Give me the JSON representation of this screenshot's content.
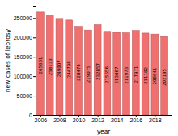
{
  "chart_data": {
    "type": "bar",
    "x": [
      2006,
      2007,
      2008,
      2009,
      2010,
      2011,
      2012,
      2013,
      2014,
      2015,
      2016,
      2017,
      2018,
      2019
    ],
    "values": [
      265661,
      258133,
      249007,
      244796,
      228474,
      219075,
      232857,
      215656,
      213067,
      211973,
      217971,
      211182,
      208641,
      202185
    ],
    "color": "#f07070",
    "xlabel": "year",
    "ylabel": "new cases of leprosy",
    "xlim": [
      2005.5,
      2019.75
    ],
    "xticks": [
      2006,
      2008,
      2010,
      2012,
      2014,
      2016,
      2018
    ],
    "ylim": [
      0,
      280000
    ],
    "yticks": [
      0,
      50000,
      100000,
      150000,
      200000,
      250000
    ],
    "data_labels": true
  }
}
